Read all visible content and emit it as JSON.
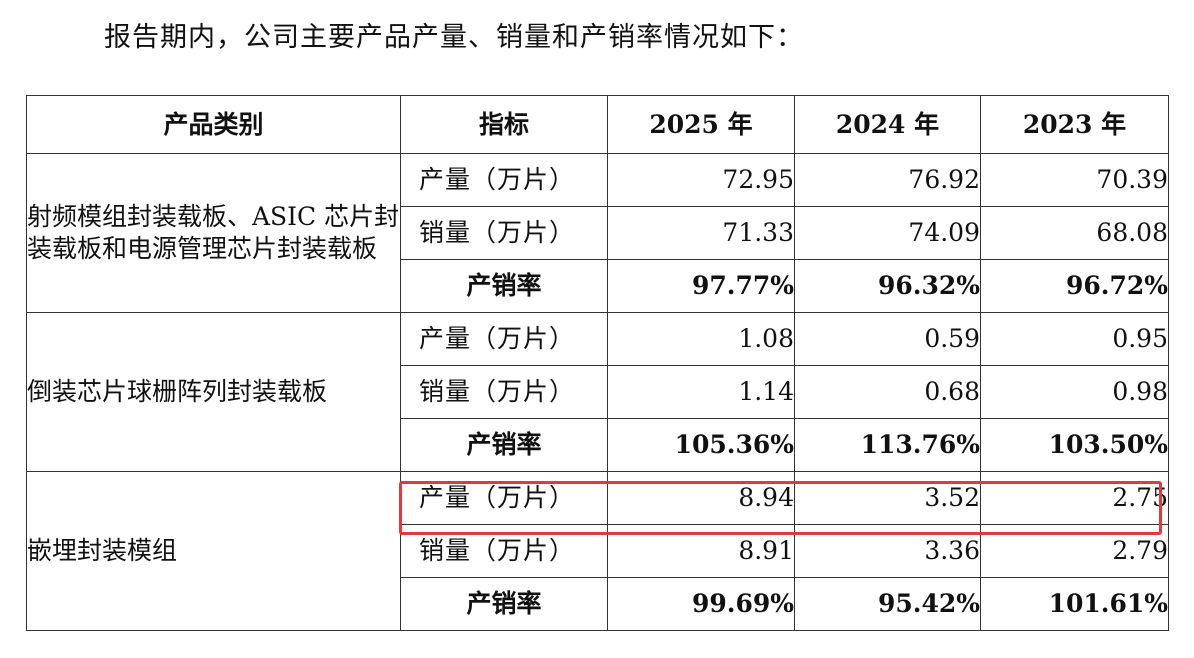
{
  "intro_text": "报告期内，公司主要产品产量、销量和产销率情况如下：",
  "table": {
    "headers": [
      "产品类别",
      "指标",
      "2025 年",
      "2024 年",
      "2023 年"
    ],
    "groups": [
      {
        "category": "射频模组封装载板、ASIC 芯片封装载板和电源管理芯片封装载板",
        "rows": [
          {
            "metric": "产量（万片）",
            "values": [
              "72.95",
              "76.92",
              "70.39"
            ]
          },
          {
            "metric": "销量（万片）",
            "values": [
              "71.33",
              "74.09",
              "68.08"
            ]
          },
          {
            "metric": "产销率",
            "values": [
              "97.77%",
              "96.32%",
              "96.72%"
            ]
          }
        ]
      },
      {
        "category": "倒装芯片球栅阵列封装载板",
        "rows": [
          {
            "metric": "产量（万片）",
            "values": [
              "1.08",
              "0.59",
              "0.95"
            ]
          },
          {
            "metric": "销量（万片）",
            "values": [
              "1.14",
              "0.68",
              "0.98"
            ]
          },
          {
            "metric": "产销率",
            "values": [
              "105.36%",
              "113.76%",
              "103.50%"
            ]
          }
        ]
      },
      {
        "category": "嵌埋封装模组",
        "rows": [
          {
            "metric": "产量（万片）",
            "values": [
              "8.94",
              "3.52",
              "2.75"
            ]
          },
          {
            "metric": "销量（万片）",
            "values": [
              "8.91",
              "3.36",
              "2.79"
            ]
          },
          {
            "metric": "产销率",
            "values": [
              "99.69%",
              "95.42%",
              "101.61%"
            ]
          }
        ]
      }
    ]
  },
  "highlight_color": "#e0393e"
}
